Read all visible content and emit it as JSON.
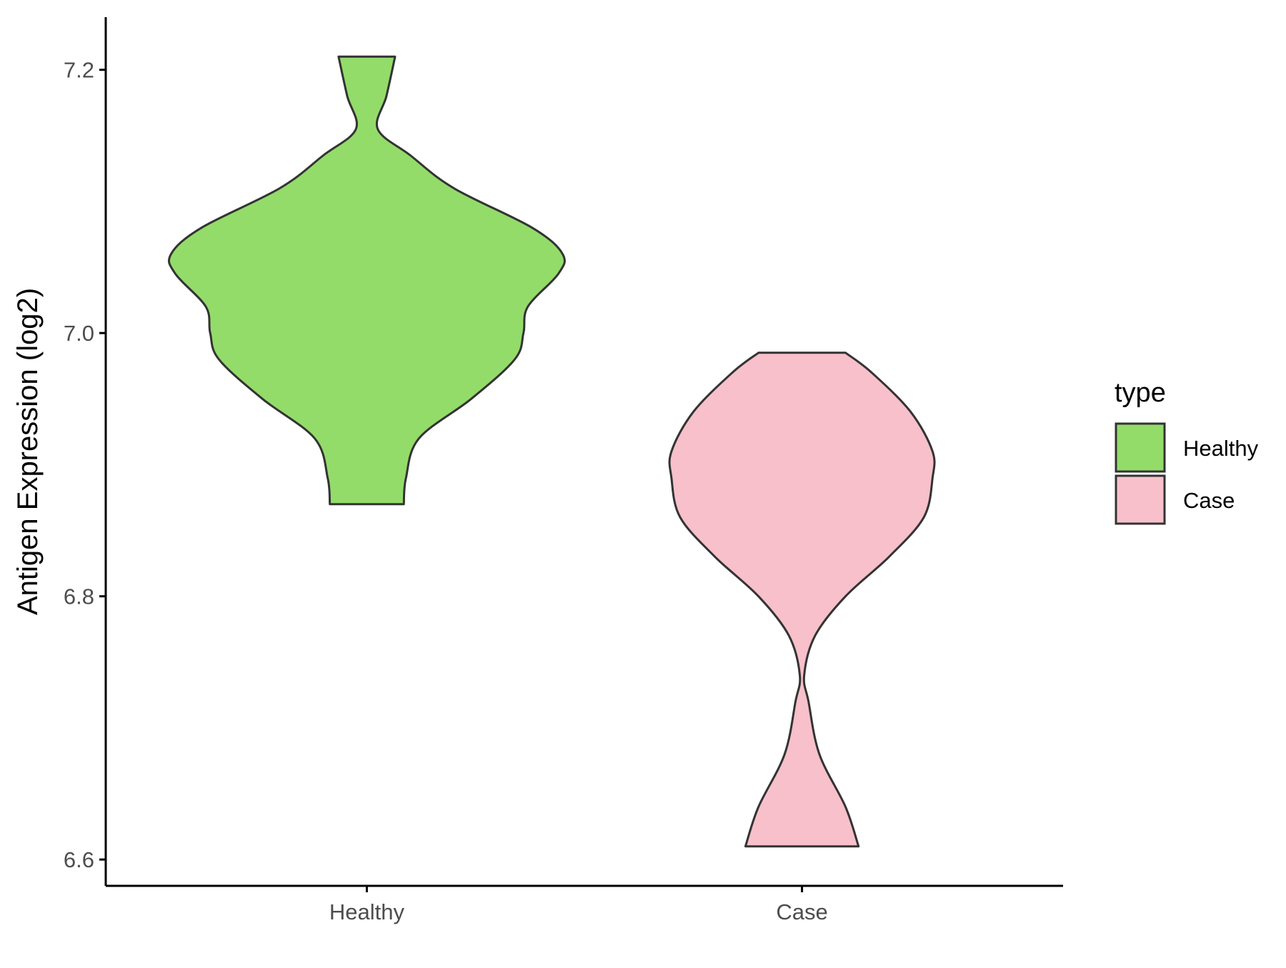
{
  "chart_data": {
    "type": "violin",
    "title": "",
    "xlabel": "",
    "ylabel": "Antigen Expression (log2)",
    "categories": [
      "Healthy",
      "Case"
    ],
    "ylim": [
      6.58,
      7.24
    ],
    "yticks": [
      6.6,
      6.8,
      7.0,
      7.2
    ],
    "ytick_labels": [
      "6.6",
      "6.8",
      "7.0",
      "7.2"
    ],
    "grid": false,
    "legend": {
      "title": "type",
      "position": "right",
      "entries": [
        {
          "label": "Healthy",
          "color": "#93DC6A"
        },
        {
          "label": "Case",
          "color": "#F7C0CB"
        }
      ]
    },
    "series": [
      {
        "name": "Healthy",
        "color": "#93DC6A",
        "min": 6.87,
        "max": 7.21,
        "density_profile": [
          {
            "y": 6.87,
            "half_width": 0.085
          },
          {
            "y": 6.89,
            "half_width": 0.09
          },
          {
            "y": 6.92,
            "half_width": 0.12
          },
          {
            "y": 6.95,
            "half_width": 0.24
          },
          {
            "y": 6.98,
            "half_width": 0.34
          },
          {
            "y": 7.0,
            "half_width": 0.36
          },
          {
            "y": 7.02,
            "half_width": 0.37
          },
          {
            "y": 7.045,
            "half_width": 0.44
          },
          {
            "y": 7.06,
            "half_width": 0.45
          },
          {
            "y": 7.08,
            "half_width": 0.38
          },
          {
            "y": 7.11,
            "half_width": 0.2
          },
          {
            "y": 7.135,
            "half_width": 0.1
          },
          {
            "y": 7.155,
            "half_width": 0.025
          },
          {
            "y": 7.18,
            "half_width": 0.045
          },
          {
            "y": 7.21,
            "half_width": 0.065
          }
        ]
      },
      {
        "name": "Case",
        "color": "#F7C0CB",
        "min": 6.61,
        "max": 6.985,
        "density_profile": [
          {
            "y": 6.61,
            "half_width": 0.13
          },
          {
            "y": 6.64,
            "half_width": 0.1
          },
          {
            "y": 6.68,
            "half_width": 0.04
          },
          {
            "y": 6.72,
            "half_width": 0.015
          },
          {
            "y": 6.74,
            "half_width": 0.005
          },
          {
            "y": 6.77,
            "half_width": 0.03
          },
          {
            "y": 6.8,
            "half_width": 0.1
          },
          {
            "y": 6.83,
            "half_width": 0.2
          },
          {
            "y": 6.86,
            "half_width": 0.28
          },
          {
            "y": 6.89,
            "half_width": 0.3
          },
          {
            "y": 6.91,
            "half_width": 0.3
          },
          {
            "y": 6.94,
            "half_width": 0.25
          },
          {
            "y": 6.97,
            "half_width": 0.16
          },
          {
            "y": 6.985,
            "half_width": 0.1
          }
        ]
      }
    ]
  }
}
